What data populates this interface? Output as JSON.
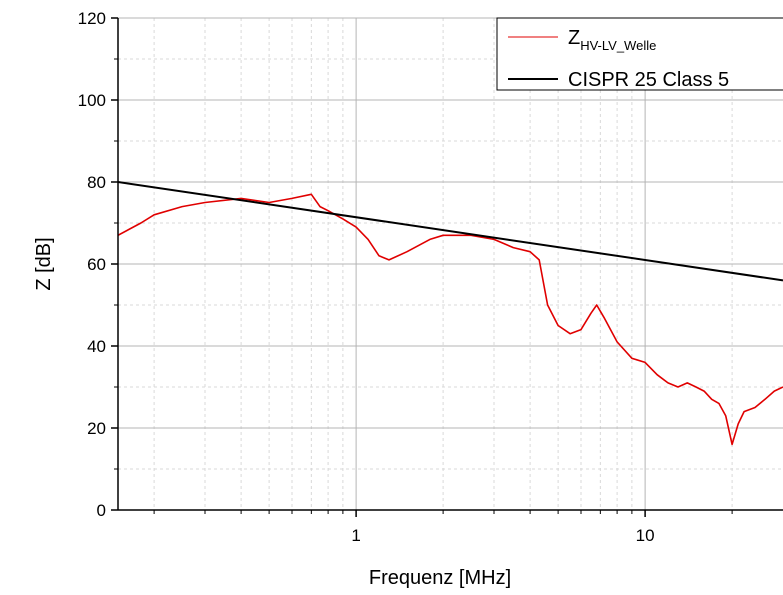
{
  "chart_data": {
    "type": "line",
    "xlabel": "Frequenz [MHz]",
    "ylabel": "Z [dB]",
    "xscale": "log",
    "xlim": [
      0.15,
      30
    ],
    "ylim": [
      0,
      120
    ],
    "x_ticks": [
      1,
      10
    ],
    "x_tick_labels": [
      "1",
      "10"
    ],
    "y_ticks": [
      0,
      20,
      40,
      60,
      80,
      100,
      120
    ],
    "y_tick_labels": [
      "0",
      "20",
      "40",
      "60",
      "80",
      "100",
      "120"
    ],
    "grid": true,
    "legend_position": "top-right",
    "series": [
      {
        "name": "Z",
        "name_subscript": "HV-LV_Welle",
        "color": "#e00000",
        "x": [
          0.15,
          0.18,
          0.2,
          0.25,
          0.3,
          0.4,
          0.5,
          0.6,
          0.7,
          0.75,
          0.8,
          0.9,
          1.0,
          1.1,
          1.2,
          1.3,
          1.5,
          1.8,
          2.0,
          2.5,
          3.0,
          3.5,
          4.0,
          4.3,
          4.6,
          5.0,
          5.5,
          6.0,
          6.5,
          6.8,
          7.2,
          8.0,
          9.0,
          10.0,
          11.0,
          12.0,
          13.0,
          14.0,
          15.0,
          16.0,
          17.0,
          18.0,
          19.0,
          20.0,
          21.0,
          22.0,
          24.0,
          26.0,
          28.0,
          30.0
        ],
        "y": [
          67,
          70,
          72,
          74,
          75,
          76,
          75,
          76,
          77,
          74,
          73,
          71,
          69,
          66,
          62,
          61,
          63,
          66,
          67,
          67,
          66,
          64,
          63,
          61,
          50,
          45,
          43,
          44,
          48,
          50,
          47,
          41,
          37,
          36,
          33,
          31,
          30,
          31,
          30,
          29,
          27,
          26,
          23,
          16,
          21,
          24,
          25,
          27,
          29,
          30
        ]
      },
      {
        "name": "CISPR 25 Class 5",
        "color": "#000000",
        "x": [
          0.15,
          30
        ],
        "y": [
          80,
          56
        ]
      }
    ]
  }
}
